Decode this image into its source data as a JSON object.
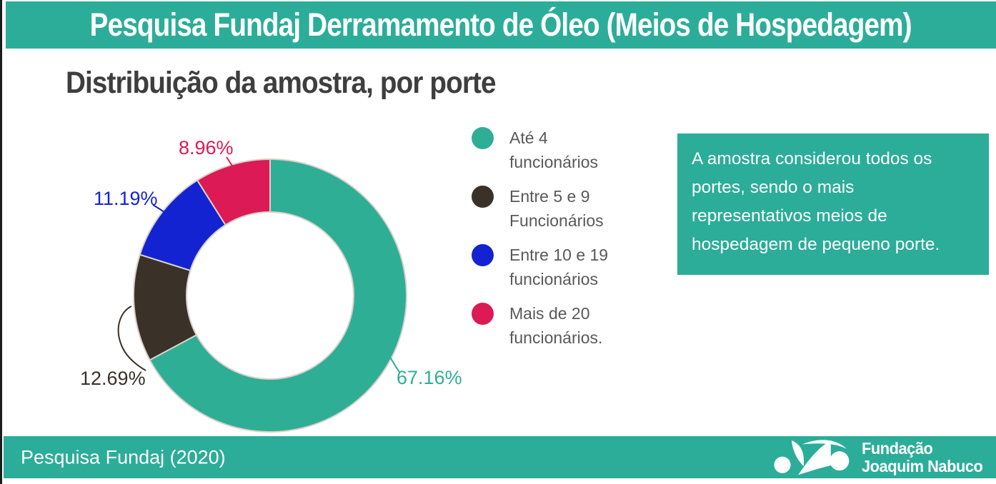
{
  "header": {
    "title": "Pesquisa Fundaj Derramamento de Óleo (Meios de Hospedagem)"
  },
  "chart": {
    "title": "Distribuição da amostra, por porte"
  },
  "chart_data": {
    "type": "pie",
    "subtype": "donut",
    "title": "Distribuição da amostra, por porte",
    "categories": [
      "Até 4 funcionários",
      "Entre 5 e 9 Funcionários",
      "Entre 10 e 19 funcionários",
      "Mais de 20 funcionários."
    ],
    "values": [
      67.16,
      12.69,
      11.19,
      8.96
    ],
    "slices": [
      {
        "label": "Até 4 funcionários",
        "value": 67.16,
        "display": "67.16%",
        "color": "#2FAE96"
      },
      {
        "label": "Entre 5 e 9 Funcionários",
        "value": 12.69,
        "display": "12.69%",
        "color": "#3A3128"
      },
      {
        "label": "Entre 10 e 19 funcionários",
        "value": 11.19,
        "display": "11.19%",
        "color": "#1423D2"
      },
      {
        "label": "Mais de 20 funcionários.",
        "value": 8.96,
        "display": "8.96%",
        "color": "#DC1A55"
      }
    ],
    "start_angle_deg": 0,
    "direction": "clockwise",
    "inner_radius_ratio": 0.61,
    "legend_position": "right",
    "slice_separator_color": "#D9D2C9"
  },
  "legend": {
    "items": [
      {
        "line1": "Até 4",
        "line2": "funcionários",
        "color": "#2FAE96"
      },
      {
        "line1": "Entre 5 e 9",
        "line2": "Funcionários",
        "color": "#3A3128"
      },
      {
        "line1": "Entre 10 e 19",
        "line2": "funcionários",
        "color": "#1423D2"
      },
      {
        "line1": "Mais de 20",
        "line2": "funcionários.",
        "color": "#DC1A55"
      }
    ]
  },
  "note": {
    "text": "A amostra considerou todos os portes, sendo o mais representativos meios de hospedagem de pequeno porte."
  },
  "footer": {
    "source": "Pesquisa Fundaj (2020)",
    "logo_line1": "Fundação",
    "logo_line2": "Joaquim Nabuco"
  },
  "colors": {
    "bar_teal": "#2BAD99",
    "chart_teal": "#2FAE96",
    "dark_brown": "#3A3128",
    "blue": "#1423D2",
    "crimson": "#DC1A55",
    "title_gray": "#3E3E3E",
    "legend_gray": "#595959"
  }
}
